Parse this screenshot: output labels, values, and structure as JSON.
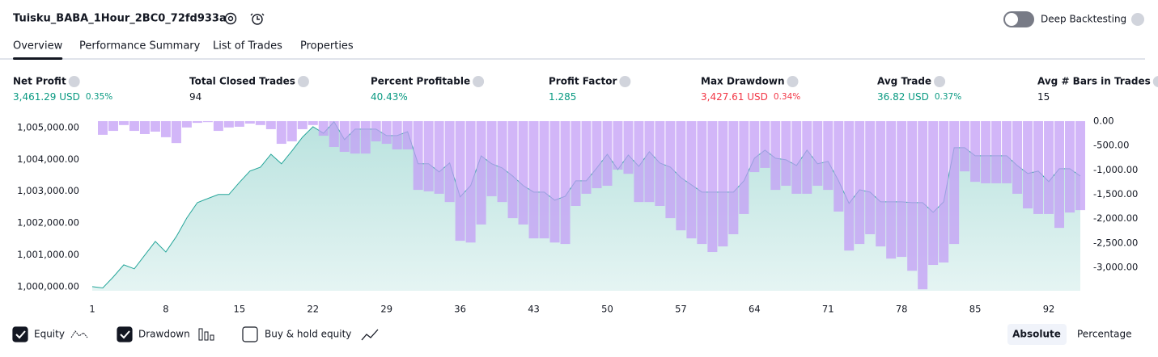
{
  "header": {
    "title": "Tuisku_BABA_1Hour_2BC0_72fd933a",
    "deep_backtesting": "Deep Backtesting"
  },
  "tabs": [
    "Overview",
    "Performance Summary",
    "List of Trades",
    "Properties"
  ],
  "metrics": [
    {
      "label": "Net Profit",
      "value": "3,461.29 USD",
      "percent": "0.35%",
      "color": "#089981"
    },
    {
      "label": "Total Closed Trades",
      "value": "94",
      "color": "#131722"
    },
    {
      "label": "Percent Profitable",
      "value": "40.43%",
      "color": "#089981"
    },
    {
      "label": "Profit Factor",
      "value": "1.285",
      "color": "#089981"
    },
    {
      "label": "Max Drawdown",
      "value": "3,427.61 USD",
      "percent": "0.34%",
      "color": "#f23645"
    },
    {
      "label": "Avg Trade",
      "value": "36.82 USD",
      "percent": "0.37%",
      "color": "#089981"
    },
    {
      "label": "Avg # Bars in Trades",
      "value": "15",
      "color": "#131722"
    }
  ],
  "chart_data": {
    "type": "combo",
    "x": [
      1,
      2,
      3,
      4,
      5,
      6,
      7,
      8,
      9,
      10,
      11,
      12,
      13,
      14,
      15,
      16,
      17,
      18,
      19,
      20,
      21,
      22,
      23,
      24,
      25,
      26,
      27,
      28,
      29,
      30,
      31,
      32,
      33,
      34,
      35,
      36,
      37,
      38,
      39,
      40,
      41,
      42,
      43,
      44,
      45,
      46,
      47,
      48,
      49,
      50,
      51,
      52,
      53,
      54,
      55,
      56,
      57,
      58,
      59,
      60,
      61,
      62,
      63,
      64,
      65,
      66,
      67,
      68,
      69,
      70,
      71,
      72,
      73,
      74,
      75,
      76,
      77,
      78,
      79,
      80,
      81,
      82,
      83,
      84,
      85,
      86,
      87,
      88,
      89,
      90,
      91,
      92,
      93,
      94,
      95
    ],
    "xlim": [
      1,
      95
    ],
    "xticks": [
      1,
      8,
      15,
      22,
      29,
      36,
      43,
      50,
      57,
      64,
      71,
      78,
      85,
      92
    ],
    "ylim": [
      999870,
      1005250
    ],
    "yticks": [
      {
        "value": 1000000,
        "label": "1,000,000.00"
      },
      {
        "value": 1001000,
        "label": "1,001,000.00"
      },
      {
        "value": 1002000,
        "label": "1,002,000.00"
      },
      {
        "value": 1003000,
        "label": "1,003,000.00"
      },
      {
        "value": 1004000,
        "label": "1,004,000.00"
      },
      {
        "value": 1005000,
        "label": "1,005,000.00"
      }
    ],
    "y2lim": [
      -3480,
      33
    ],
    "y2ticks": [
      {
        "value": 0,
        "label": "0.00"
      },
      {
        "value": -500,
        "label": "-500.00"
      },
      {
        "value": -1000,
        "label": "-1,000.00"
      },
      {
        "value": -1500,
        "label": "-1,500.00"
      },
      {
        "value": -2000,
        "label": "-2,000.00"
      },
      {
        "value": -2500,
        "label": "-2,500.00"
      },
      {
        "value": -3000,
        "label": "-3,000.00"
      }
    ],
    "series": [
      {
        "name": "Equity",
        "type": "area",
        "color": "#26a69a",
        "values": [
          1000000,
          999960,
          1000305,
          1000685,
          1000560,
          1000990,
          1001420,
          1001090,
          1001575,
          1002160,
          1002640,
          1002770,
          1002895,
          1002895,
          1003275,
          1003630,
          1003755,
          1004160,
          1003860,
          1004265,
          1004695,
          1005025,
          1004820,
          1005180,
          1004620,
          1004950,
          1004950,
          1004950,
          1004745,
          1004745,
          1004870,
          1003860,
          1003860,
          1003605,
          1003885,
          1002820,
          1003175,
          1004110,
          1003860,
          1003730,
          1003475,
          1003175,
          1002970,
          1002970,
          1002715,
          1002840,
          1003325,
          1003325,
          1003730,
          1004160,
          1003680,
          1004135,
          1003780,
          1004240,
          1003885,
          1003755,
          1003425,
          1003200,
          1002970,
          1002970,
          1002970,
          1002970,
          1003325,
          1004035,
          1004290,
          1004035,
          1003985,
          1003805,
          1004290,
          1003860,
          1003935,
          1003325,
          1002615,
          1003045,
          1002970,
          1002665,
          1002665,
          1002665,
          1002640,
          1002640,
          1002335,
          1002665,
          1004365,
          1004365,
          1004110,
          1004110,
          1004110,
          1004110,
          1003805,
          1003555,
          1003630,
          1003300,
          1003705,
          1003705,
          1003475
        ]
      },
      {
        "name": "Drawdown",
        "type": "bar",
        "axis": "y2",
        "color": "#c39ef6",
        "values": [
          null,
          -280,
          -200,
          -80,
          -200,
          -265,
          -215,
          -330,
          -450,
          -130,
          -35,
          -20,
          -200,
          -130,
          -115,
          -50,
          -80,
          -165,
          -465,
          -415,
          -165,
          -80,
          -300,
          -530,
          -630,
          -665,
          -665,
          -415,
          -465,
          -580,
          -580,
          -1410,
          -1440,
          -1490,
          -1660,
          -2455,
          -2490,
          -2120,
          -1540,
          -1660,
          -1990,
          -2120,
          -2405,
          -2405,
          -2490,
          -2520,
          -1740,
          -1490,
          -1375,
          -1325,
          -995,
          -1080,
          -1660,
          -1660,
          -1740,
          -1990,
          -2240,
          -2405,
          -2520,
          -2685,
          -2570,
          -2320,
          -1905,
          -1045,
          -960,
          -1410,
          -1325,
          -1490,
          -1490,
          -1325,
          -1410,
          -1855,
          -2655,
          -2520,
          -2320,
          -2570,
          -2820,
          -2785,
          -3070,
          -3450,
          -2950,
          -2900,
          -2520,
          -1030,
          -1245,
          -1275,
          -1275,
          -1275,
          -1490,
          -1790,
          -1905,
          -1905,
          -2190,
          -1875,
          -1825
        ]
      }
    ]
  },
  "extra_legend": "Buy & hold equity",
  "modes": [
    "Absolute",
    "Percentage"
  ]
}
